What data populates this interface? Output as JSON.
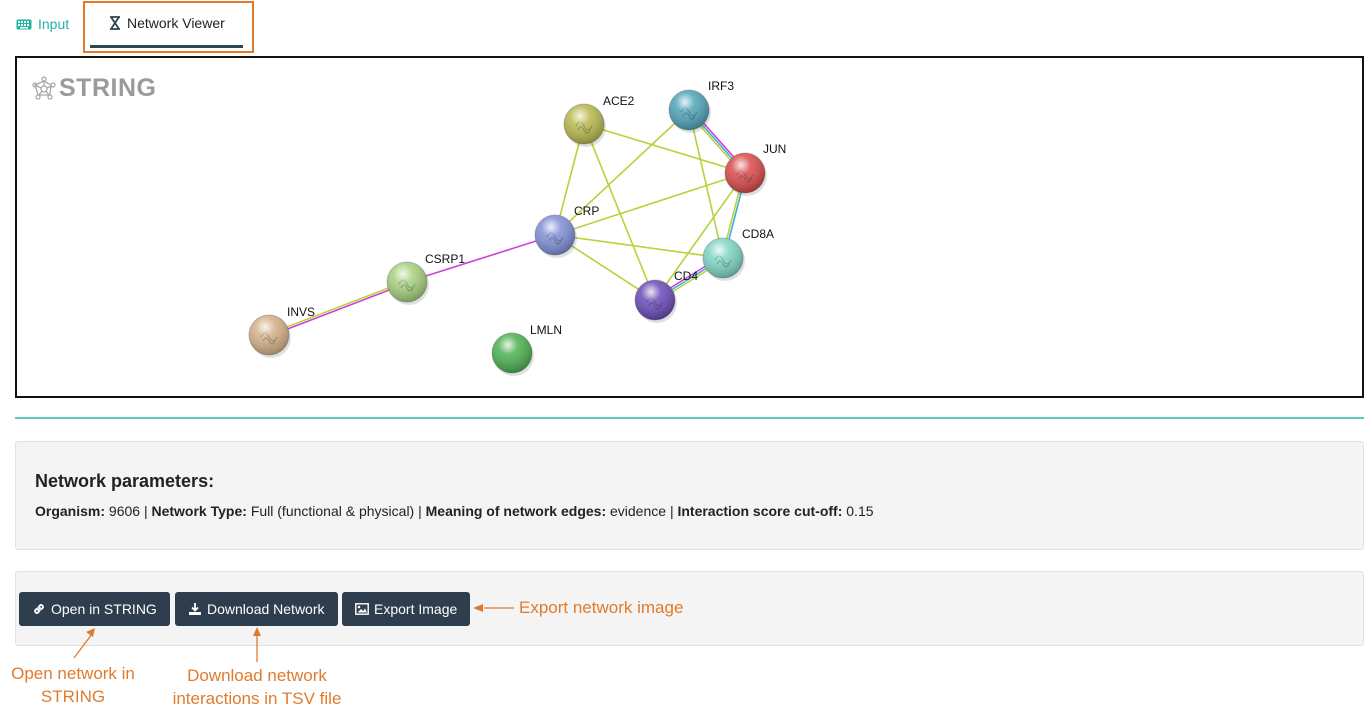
{
  "tabs": {
    "input_label": "Input",
    "network_viewer_label": "Network Viewer"
  },
  "network": {
    "logo_text": "STRING",
    "nodes": [
      {
        "id": "ACE2",
        "label": "ACE2",
        "color": "#b9b84e"
      },
      {
        "id": "IRF3",
        "label": "IRF3",
        "color": "#4fa3b8"
      },
      {
        "id": "JUN",
        "label": "JUN",
        "color": "#d84a4a"
      },
      {
        "id": "CRP",
        "label": "CRP",
        "color": "#7f8fd6"
      },
      {
        "id": "CD8A",
        "label": "CD8A",
        "color": "#7fd6c4"
      },
      {
        "id": "CD4",
        "label": "CD4",
        "color": "#6a4bb8"
      },
      {
        "id": "CSRP1",
        "label": "CSRP1",
        "color": "#a6d07e"
      },
      {
        "id": "INVS",
        "label": "INVS",
        "color": "#d4b088"
      },
      {
        "id": "LMLN",
        "label": "LMLN",
        "color": "#4cb050"
      }
    ],
    "edges": [
      {
        "a": "ACE2",
        "b": "CRP",
        "colors": [
          "#b5d33a"
        ]
      },
      {
        "a": "ACE2",
        "b": "JUN",
        "colors": [
          "#b5d33a"
        ]
      },
      {
        "a": "ACE2",
        "b": "CD4",
        "colors": [
          "#b5d33a"
        ]
      },
      {
        "a": "IRF3",
        "b": "CRP",
        "colors": [
          "#b5d33a"
        ]
      },
      {
        "a": "IRF3",
        "b": "JUN",
        "colors": [
          "#d43fd4",
          "#3fb0d4",
          "#b5d33a"
        ]
      },
      {
        "a": "IRF3",
        "b": "CD8A",
        "colors": [
          "#b5d33a"
        ]
      },
      {
        "a": "JUN",
        "b": "CRP",
        "colors": [
          "#b5d33a"
        ]
      },
      {
        "a": "JUN",
        "b": "CD8A",
        "colors": [
          "#3fb0d4",
          "#b5d33a"
        ]
      },
      {
        "a": "JUN",
        "b": "CD4",
        "colors": [
          "#b5d33a"
        ]
      },
      {
        "a": "CRP",
        "b": "CD8A",
        "colors": [
          "#b5d33a"
        ]
      },
      {
        "a": "CRP",
        "b": "CD4",
        "colors": [
          "#b5d33a"
        ]
      },
      {
        "a": "CD4",
        "b": "CD8A",
        "colors": [
          "#d43fd4",
          "#3fb0d4",
          "#b5d33a"
        ]
      },
      {
        "a": "CRP",
        "b": "CSRP1",
        "colors": [
          "#d43fd4"
        ]
      },
      {
        "a": "CSRP1",
        "b": "INVS",
        "colors": [
          "#d43fd4",
          "#b5d33a"
        ]
      }
    ]
  },
  "parameters": {
    "title": "Network parameters:",
    "organism_label": "Organism:",
    "organism_value": "9606",
    "network_type_label": "Network Type:",
    "network_type_value": "Full (functional & physical)",
    "edges_meaning_label": "Meaning of network edges:",
    "edges_meaning_value": "evidence",
    "cutoff_label": "Interaction score cut-off:",
    "cutoff_value": "0.15",
    "separator": "|"
  },
  "buttons": {
    "open_string": "Open in STRING",
    "download_network": "Download Network",
    "export_image": "Export Image"
  },
  "annotations": {
    "export_note": "Export network image",
    "open_note_line1": "Open network in",
    "open_note_line2": "STRING",
    "download_note_line1": "Download network",
    "download_note_line2": "interactions in TSV file"
  },
  "colors": {
    "accent_teal": "#1fb5a3",
    "annotation_orange": "#e07b2e",
    "button_dark": "#2e3e4e"
  }
}
